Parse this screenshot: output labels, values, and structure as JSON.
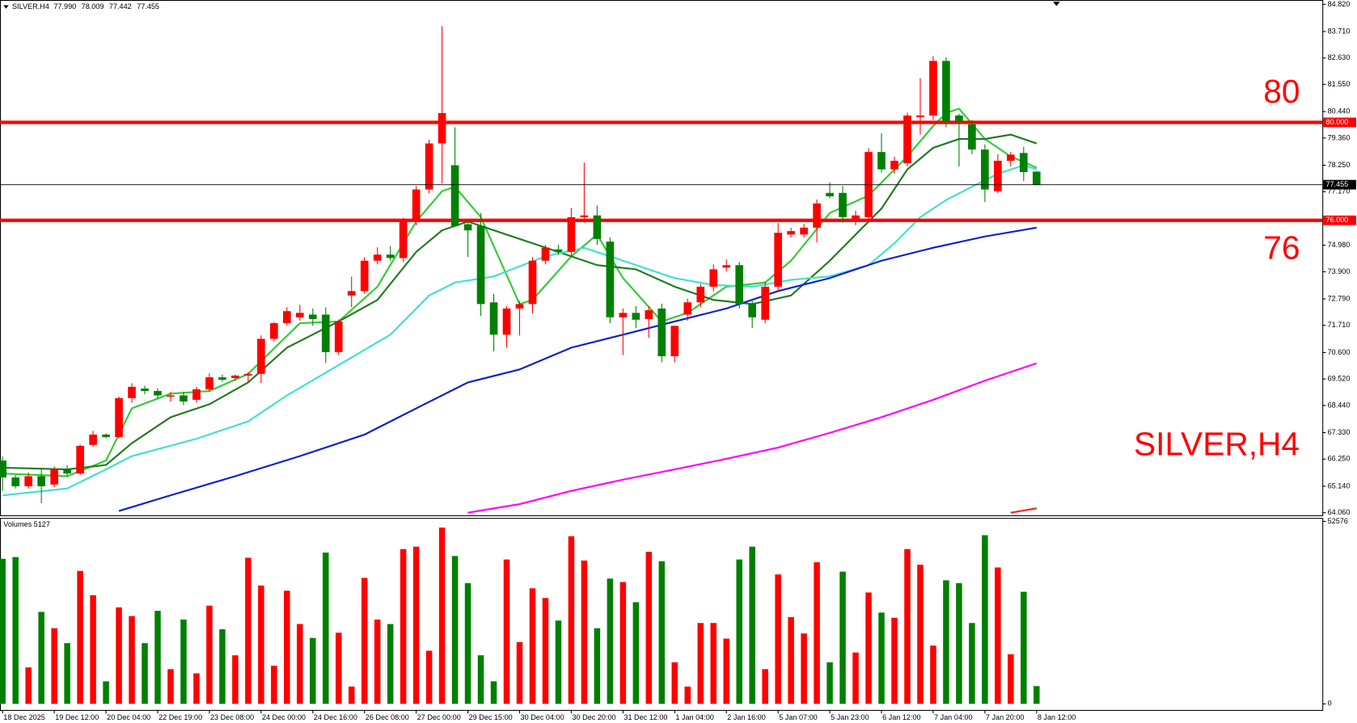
{
  "chart_data": {
    "type": "candlestick",
    "title": "SILVER,H4",
    "ohlc_labels": [
      "77.990",
      "78.009",
      "77.442",
      "77.455"
    ],
    "up_color": "#ff0000",
    "down_color": "#008000",
    "categories": [
      "18 Dec 2025",
      null,
      null,
      null,
      "19 Dec 12:00",
      null,
      null,
      null,
      "20 Dec 04:00",
      null,
      null,
      null,
      "22 Dec 19:00",
      null,
      null,
      null,
      "23 Dec 08:00",
      null,
      null,
      null,
      "24 Dec 00:00",
      null,
      null,
      null,
      "24 Dec 16:00",
      null,
      null,
      null,
      "26 Dec 08:00",
      null,
      null,
      null,
      "27 Dec 00:00",
      null,
      null,
      null,
      "29 Dec 15:00",
      null,
      null,
      null,
      "30 Dec 04:00",
      null,
      null,
      null,
      "30 Dec 20:00",
      null,
      null,
      null,
      "31 Dec 12:00",
      null,
      null,
      null,
      "1 Jan 04:00",
      null,
      null,
      null,
      "2 Jan 16:00",
      null,
      null,
      null,
      "5 Jan 07:00",
      null,
      null,
      null,
      "5 Jan 23:00",
      null,
      null,
      null,
      "6 Jan 12:00",
      null,
      null,
      null,
      "7 Jan 04:00",
      null,
      null,
      null,
      "7 Jan 20:00",
      null,
      null,
      null,
      "8 Jan 12:00"
    ],
    "open": [
      66.19,
      65.5,
      65.14,
      65.55,
      65.21,
      65.83,
      65.66,
      66.83,
      67.25,
      67.15,
      68.74,
      69.13,
      69.03,
      68.8,
      68.85,
      68.67,
      69.1,
      69.59,
      69.56,
      69.66,
      69.73,
      71.16,
      71.8,
      72.04,
      72.15,
      72.15,
      70.62,
      72.93,
      73.11,
      74.35,
      74.6,
      74.46,
      75.95,
      77.26,
      79.14,
      78.25,
      75.84,
      75.77,
      72.65,
      71.33,
      72.4,
      72.58,
      74.35,
      74.81,
      74.71,
      76.13,
      76.2,
      75.13,
      72.04,
      72.22,
      71.97,
      72.4,
      70.45,
      72.15,
      72.65,
      73.29,
      74.07,
      74.17,
      72.58,
      71.94,
      73.29,
      75.42,
      75.42,
      75.7,
      77.12,
      77.12,
      75.95,
      76.13,
      78.79,
      78.08,
      78.33,
      80.21,
      80.28,
      82.51,
      80.28,
      79.92,
      78.89,
      77.19,
      78.43,
      78.75,
      77.99
    ],
    "high": [
      66.35,
      65.6,
      65.7,
      65.85,
      65.95,
      66.0,
      66.85,
      67.4,
      67.3,
      68.8,
      69.35,
      69.25,
      69.15,
      69.0,
      69.0,
      69.2,
      69.75,
      69.7,
      69.7,
      69.8,
      71.3,
      71.85,
      72.45,
      72.55,
      72.4,
      72.45,
      71.95,
      73.7,
      74.5,
      74.9,
      74.95,
      76.1,
      77.4,
      79.3,
      83.93,
      79.8,
      76.0,
      76.3,
      73.0,
      72.5,
      72.7,
      74.5,
      75.0,
      75.0,
      76.5,
      78.35,
      76.6,
      75.3,
      72.4,
      72.5,
      72.5,
      72.6,
      71.7,
      72.8,
      73.4,
      74.2,
      74.4,
      74.3,
      72.8,
      73.5,
      75.9,
      75.7,
      75.85,
      76.85,
      77.55,
      77.4,
      76.4,
      78.95,
      79.55,
      78.6,
      80.4,
      81.8,
      82.7,
      82.65,
      80.35,
      80.1,
      79.1,
      78.7,
      78.8,
      79.0,
      78.009
    ],
    "low": [
      64.95,
      65.05,
      65.05,
      64.45,
      65.1,
      65.55,
      65.6,
      66.75,
      67.1,
      67.1,
      68.55,
      68.9,
      68.7,
      68.6,
      68.45,
      68.55,
      69.0,
      69.4,
      69.45,
      69.4,
      69.35,
      71.05,
      71.7,
      71.9,
      71.69,
      70.17,
      70.5,
      72.45,
      73.0,
      74.2,
      74.35,
      74.3,
      75.8,
      77.1,
      77.5,
      75.8,
      74.5,
      72.1,
      70.65,
      70.8,
      71.3,
      72.2,
      74.2,
      74.6,
      74.5,
      75.9,
      75.0,
      71.8,
      70.5,
      71.6,
      71.2,
      70.2,
      70.2,
      71.9,
      72.45,
      73.1,
      73.9,
      72.4,
      71.6,
      71.8,
      73.1,
      75.3,
      75.3,
      75.1,
      76.9,
      75.9,
      75.8,
      75.9,
      77.95,
      77.9,
      78.2,
      79.5,
      80.1,
      79.8,
      78.2,
      78.7,
      76.75,
      77.1,
      78.2,
      77.6,
      77.442
    ],
    "close": [
      65.5,
      65.14,
      65.55,
      65.14,
      65.83,
      65.66,
      66.79,
      67.25,
      67.15,
      68.74,
      69.2,
      69.03,
      68.85,
      68.85,
      68.6,
      69.1,
      69.59,
      69.49,
      69.66,
      69.73,
      71.16,
      71.8,
      72.29,
      72.22,
      71.97,
      70.62,
      71.87,
      73.11,
      74.35,
      74.6,
      74.46,
      75.95,
      77.26,
      79.14,
      80.38,
      75.77,
      75.59,
      72.58,
      71.33,
      72.4,
      72.58,
      74.35,
      74.88,
      74.71,
      76.13,
      76.2,
      75.24,
      72.04,
      72.22,
      71.94,
      72.33,
      70.45,
      71.69,
      72.65,
      73.29,
      74.0,
      74.17,
      72.58,
      72.04,
      73.29,
      75.49,
      75.56,
      75.7,
      76.69,
      76.98,
      76.13,
      76.2,
      78.79,
      78.08,
      78.43,
      80.28,
      80.28,
      82.51,
      80.03,
      80.03,
      78.89,
      77.26,
      78.43,
      78.68,
      77.97,
      77.455
    ],
    "ylim": [
      64.06,
      84.82
    ],
    "yticks": [
      {
        "value": 64.06,
        "label": "64.060"
      },
      {
        "value": 65.14,
        "label": "65.140"
      },
      {
        "value": 66.25,
        "label": "66.250"
      },
      {
        "value": 67.33,
        "label": "67.330"
      },
      {
        "value": 68.44,
        "label": "68.440"
      },
      {
        "value": 69.52,
        "label": "69.520"
      },
      {
        "value": 70.6,
        "label": "70.600"
      },
      {
        "value": 71.71,
        "label": "71.710"
      },
      {
        "value": 72.79,
        "label": "72.790"
      },
      {
        "value": 73.9,
        "label": "73.900"
      },
      {
        "value": 74.98,
        "label": "74.980"
      },
      {
        "value": 77.17,
        "label": "77.170"
      },
      {
        "value": 78.25,
        "label": "78.250"
      },
      {
        "value": 79.36,
        "label": "79.360"
      },
      {
        "value": 80.44,
        "label": "80.440"
      },
      {
        "value": 81.55,
        "label": "81.550"
      },
      {
        "value": 82.63,
        "label": "82.630"
      },
      {
        "value": 83.71,
        "label": "83.710"
      },
      {
        "value": 84.82,
        "label": "84.820"
      }
    ],
    "levels": [
      {
        "value": 80,
        "label": "80.000",
        "annotation": "80",
        "color": "#ff0000"
      },
      {
        "value": 76,
        "label": "76.000",
        "annotation": "76",
        "color": "#ff0000"
      }
    ],
    "moving_averages": [
      {
        "color": "#32cd32",
        "x": [
          0,
          5,
          8,
          10,
          13,
          16,
          19,
          23,
          26,
          29,
          32,
          34,
          35,
          37,
          40,
          41,
          44,
          46,
          48,
          51,
          53,
          56,
          59,
          61,
          64,
          67,
          70,
          72,
          73,
          74,
          76,
          78,
          80
        ],
        "values": [
          65.66,
          65.55,
          66.19,
          68.32,
          68.92,
          69.03,
          69.73,
          71.8,
          71.87,
          73.29,
          75.95,
          77.19,
          77.37,
          76.13,
          72.58,
          72.75,
          74.53,
          75.42,
          73.64,
          71.87,
          72.22,
          73.29,
          73.46,
          74.35,
          76.3,
          77.01,
          78.61,
          79.85,
          80.38,
          80.56,
          79.32,
          78.61,
          78.15
        ]
      },
      {
        "color": "#1e7b1e",
        "x": [
          0,
          5,
          8,
          10,
          13,
          16,
          19,
          22,
          26,
          29,
          32,
          34,
          36,
          40,
          43,
          46,
          49,
          52,
          55,
          58,
          61,
          64,
          66,
          68,
          70,
          72,
          74,
          76,
          78,
          80
        ],
        "values": [
          65.9,
          65.83,
          66.01,
          66.9,
          67.96,
          68.49,
          69.38,
          70.8,
          71.87,
          72.75,
          74.71,
          75.59,
          75.95,
          75.24,
          74.71,
          74.17,
          74.0,
          73.29,
          72.75,
          72.58,
          72.93,
          74.35,
          75.42,
          76.48,
          78.08,
          78.96,
          79.32,
          79.32,
          79.5,
          79.14
        ]
      },
      {
        "color": "#40e0d0",
        "x": [
          0,
          5,
          8,
          10,
          15,
          19,
          22,
          26,
          30,
          33,
          35,
          38,
          42,
          45,
          48,
          52,
          55,
          58,
          61,
          64,
          67,
          69,
          71,
          73,
          75,
          77,
          79,
          80
        ],
        "values": [
          64.77,
          65.05,
          65.83,
          66.37,
          67.08,
          67.79,
          68.85,
          70.09,
          71.33,
          72.93,
          73.46,
          73.71,
          74.53,
          74.88,
          74.35,
          73.64,
          73.36,
          73.29,
          73.57,
          73.71,
          74.17,
          75.06,
          76.13,
          76.83,
          77.37,
          77.9,
          78.25,
          78.08
        ]
      },
      {
        "color": "#0a1fd0",
        "x": [
          9,
          13,
          18,
          23,
          28,
          32,
          36,
          40,
          44,
          48,
          52,
          56,
          60,
          64,
          68,
          72,
          76,
          80
        ],
        "values": [
          64.13,
          64.77,
          65.55,
          66.37,
          67.25,
          68.32,
          69.38,
          69.91,
          70.8,
          71.33,
          71.87,
          72.4,
          73.11,
          73.64,
          74.35,
          74.88,
          75.34,
          75.7
        ]
      },
      {
        "color": "#ff00ff",
        "x": [
          36,
          40,
          44,
          48,
          52,
          56,
          60,
          64,
          68,
          72,
          76,
          80
        ],
        "values": [
          64.06,
          64.41,
          64.95,
          65.41,
          65.83,
          66.26,
          66.72,
          67.32,
          67.96,
          68.67,
          69.45,
          70.16
        ]
      },
      {
        "color": "#ff2020",
        "x": [
          78,
          80
        ],
        "values": [
          64.06,
          64.24
        ]
      }
    ],
    "volume": {
      "title": "Volumes 5127",
      "ylim": [
        0,
        52576
      ],
      "yticks": [
        0,
        52576
      ],
      "values": [
        41800,
        42300,
        10500,
        26500,
        21800,
        17500,
        38300,
        31300,
        6500,
        27800,
        25300,
        17500,
        26800,
        10000,
        24300,
        8800,
        28300,
        21500,
        14000,
        42100,
        34100,
        11000,
        32600,
        23000,
        19000,
        43600,
        20500,
        5000,
        36300,
        24300,
        23000,
        44600,
        45300,
        15300,
        50800,
        42600,
        34800,
        14000,
        6500,
        41600,
        17800,
        33300,
        30500,
        24000,
        48300,
        41300,
        21800,
        36100,
        35100,
        29300,
        43800,
        41100,
        12000,
        5000,
        23300,
        23300,
        18800,
        41600,
        45300,
        10000,
        37300,
        25000,
        20300,
        40800,
        12000,
        38100,
        14800,
        32100,
        26300,
        24800,
        44600,
        40100,
        16800,
        35600,
        34800,
        23300,
        48600,
        39300,
        14300,
        32300,
        5127
      ]
    }
  }
}
